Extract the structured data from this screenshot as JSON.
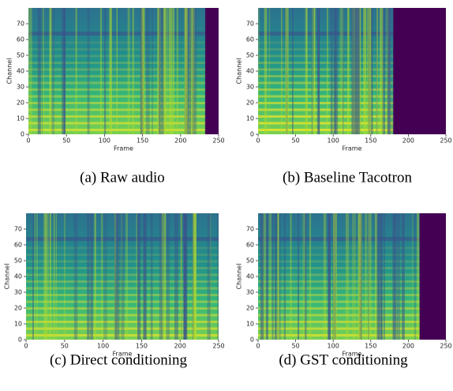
{
  "chart_data": [
    {
      "type": "heatmap",
      "caption": "(a) Raw audio",
      "xlabel": "Frame",
      "ylabel": "Channel",
      "xlim": [
        0,
        250
      ],
      "ylim": [
        0,
        80
      ],
      "xticks": [
        0,
        50,
        100,
        150,
        200,
        250
      ],
      "yticks": [
        0,
        10,
        20,
        30,
        40,
        50,
        60,
        70
      ]
    },
    {
      "type": "heatmap",
      "caption": "(b) Baseline Tacotron",
      "xlabel": "Frame",
      "ylabel": "Channel",
      "xlim": [
        0,
        250
      ],
      "ylim": [
        0,
        80
      ],
      "xticks": [
        0,
        50,
        100,
        150,
        200,
        250
      ],
      "yticks": [
        0,
        10,
        20,
        30,
        40,
        50,
        60,
        70
      ]
    },
    {
      "type": "heatmap",
      "caption": "(c) Direct conditioning",
      "xlabel": "Frame",
      "ylabel": "Channel",
      "xlim": [
        0,
        250
      ],
      "ylim": [
        0,
        80
      ],
      "xticks": [
        0,
        50,
        100,
        150,
        200,
        250
      ],
      "yticks": [
        0,
        10,
        20,
        30,
        40,
        50,
        60,
        70
      ]
    },
    {
      "type": "heatmap",
      "caption": "(d) GST conditioning",
      "xlabel": "Frame",
      "ylabel": "Channel",
      "xlim": [
        0,
        250
      ],
      "ylim": [
        0,
        80
      ],
      "xticks": [
        0,
        50,
        100,
        150,
        200,
        250
      ],
      "yticks": [
        0,
        10,
        20,
        30,
        40,
        50,
        60,
        70
      ]
    }
  ]
}
